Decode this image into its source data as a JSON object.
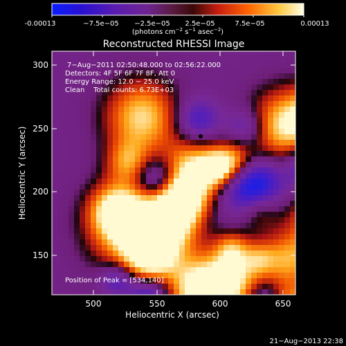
{
  "colorbar": {
    "tick_labels": [
      "-0.00013",
      "−7.5e−05",
      "−2.5e−05",
      "2.5e−05",
      "7.5e−05",
      "0.00013"
    ],
    "units_prefix": "(photons cm",
    "units_sup1": "−2",
    "units_mid": " s",
    "units_sup2": "−1",
    "units_mid2": " asec",
    "units_sup3": "−2",
    "units_suffix": ")"
  },
  "image": {
    "title": "Reconstructed RHESSI Image",
    "info": {
      "time_range": "7−Aug−2011 02:50:48.000 to 02:56:22.000",
      "detectors": "Detectors: 4F 5F 6F 7F 8F, Att 0",
      "energy_range": "Energy Range: 12.0 − 25.0 keV",
      "method_counts": "Clean    Total counts: 6.73E+03"
    },
    "peak_label": "Position of Peak = [534,140]",
    "x_axis": {
      "label": "Heliocentric X (arcsec)",
      "ticks": [
        "500",
        "550",
        "600",
        "650"
      ]
    },
    "y_axis": {
      "label": "Heliocentric Y (arcsec)",
      "ticks": [
        "300",
        "250",
        "200",
        "150"
      ]
    }
  },
  "footer": {
    "timestamp": "21−Aug−2013 22:38"
  },
  "palette": {
    "background": "#000000",
    "low": "#1e0fe6",
    "mid_low": "#5a1eb4",
    "zero": "#782891",
    "mid_high": "#c81e14",
    "high": "#ff7800",
    "peak": "#ffffdc"
  }
}
